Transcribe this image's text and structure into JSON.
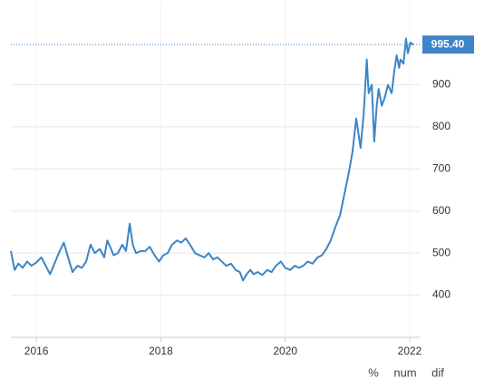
{
  "chart_data": {
    "type": "line",
    "x": [
      2015.59,
      2015.65,
      2015.71,
      2015.78,
      2015.85,
      2015.92,
      2016.0,
      2016.08,
      2016.15,
      2016.22,
      2016.29,
      2016.36,
      2016.44,
      2016.51,
      2016.58,
      2016.66,
      2016.73,
      2016.8,
      2016.87,
      2016.94,
      2017.02,
      2017.09,
      2017.14,
      2017.2,
      2017.24,
      2017.31,
      2017.38,
      2017.44,
      2017.5,
      2017.55,
      2017.6,
      2017.68,
      2017.75,
      2017.82,
      2017.9,
      2017.97,
      2018.04,
      2018.11,
      2018.18,
      2018.26,
      2018.33,
      2018.4,
      2018.47,
      2018.55,
      2018.62,
      2018.7,
      2018.77,
      2018.84,
      2018.91,
      2018.98,
      2019.05,
      2019.13,
      2019.2,
      2019.27,
      2019.32,
      2019.38,
      2019.44,
      2019.49,
      2019.56,
      2019.63,
      2019.71,
      2019.78,
      2019.85,
      2019.93,
      2020.0,
      2020.08,
      2020.15,
      2020.22,
      2020.29,
      2020.36,
      2020.44,
      2020.52,
      2020.59,
      2020.66,
      2020.73,
      2020.8,
      2020.88,
      2020.95,
      2021.02,
      2021.08,
      2021.14,
      2021.18,
      2021.21,
      2021.26,
      2021.31,
      2021.34,
      2021.39,
      2021.43,
      2021.47,
      2021.5,
      2021.55,
      2021.6,
      2021.65,
      2021.71,
      2021.75,
      2021.79,
      2021.83,
      2021.85,
      2021.9,
      2021.94,
      2021.97,
      2022.01,
      2022.06
    ],
    "series": [
      {
        "color": "#3d85c6",
        "values": [
          505,
          460,
          475,
          465,
          480,
          470,
          478,
          490,
          470,
          450,
          475,
          500,
          525,
          490,
          455,
          470,
          465,
          480,
          520,
          500,
          510,
          490,
          530,
          510,
          495,
          500,
          520,
          505,
          570,
          520,
          500,
          505,
          505,
          515,
          495,
          480,
          495,
          500,
          520,
          530,
          525,
          535,
          520,
          500,
          495,
          490,
          500,
          485,
          490,
          480,
          470,
          475,
          460,
          455,
          435,
          450,
          460,
          450,
          455,
          448,
          460,
          455,
          470,
          480,
          465,
          460,
          470,
          465,
          470,
          480,
          475,
          490,
          495,
          510,
          530,
          560,
          590,
          640,
          690,
          740,
          820,
          780,
          750,
          830,
          960,
          880,
          900,
          765,
          850,
          890,
          850,
          870,
          900,
          880,
          930,
          970,
          940,
          960,
          950,
          1010,
          975,
          1000,
          995.4
        ]
      }
    ],
    "xlim": [
      2015.59,
      2022.16
    ],
    "xticks": [
      2016,
      2018,
      2020,
      2022
    ],
    "ylim": [
      300,
      1097
    ],
    "yticks": [
      400,
      500,
      600,
      700,
      800,
      900
    ],
    "current": {
      "value": 995.4,
      "label": "995.40"
    },
    "grid": true,
    "buttons": [
      "%",
      "num",
      "dif"
    ]
  }
}
